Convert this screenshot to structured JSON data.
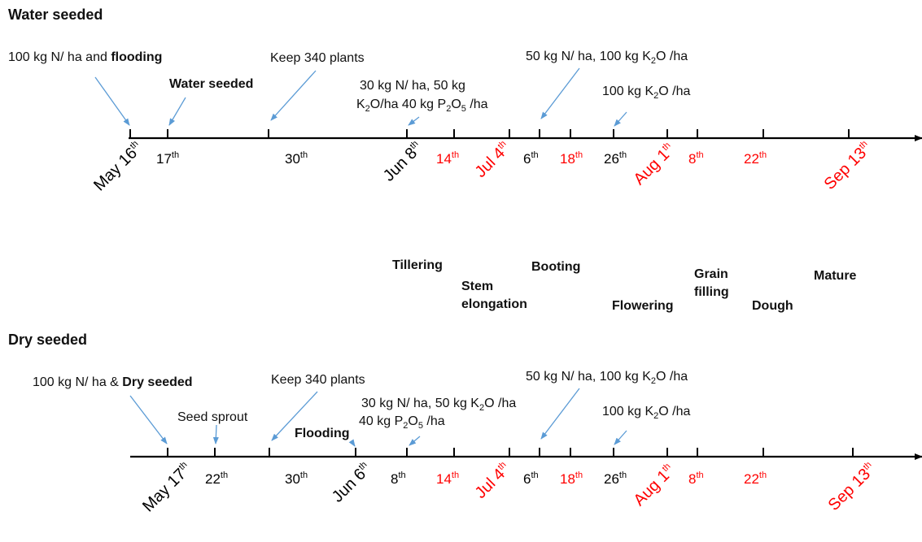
{
  "accent_red": "#ff0000",
  "arrow_color": "#5b9bd5",
  "axis_color": "#000000",
  "water": {
    "title": "Water seeded",
    "annotations": {
      "a1_pre": "100 kg N/ ha and ",
      "a1_bold": "flooding",
      "a2": "Water seeded",
      "a3": "Keep 340 plants",
      "a4_l1": "30 kg N/ ha, 50 kg",
      "a4_l2_k": "K",
      "a4_l2_k_sub": "2",
      "a4_l2_mid": "O/ha 40 kg P",
      "a4_l2_p_sub": "2",
      "a4_l2_o": "O",
      "a4_l2_o_sub": "5",
      "a4_l2_end": " /ha",
      "a5_pre": "50 kg N/ ha, 100 kg K",
      "a5_sub": "2",
      "a5_end": "O /ha",
      "a6_pre": "100 kg K",
      "a6_sub": "2",
      "a6_end": "O /ha"
    },
    "days": {
      "d17": "17",
      "d17s": "th",
      "d30": "30",
      "d30s": "th",
      "d14": "14",
      "d14s": "th",
      "d6": "6",
      "d6s": "th",
      "d18": "18",
      "d18s": "th",
      "d26": "26",
      "d26s": "th",
      "d8": "8",
      "d8s": "th",
      "d22": "22",
      "d22s": "th"
    },
    "months": {
      "may": "May 16",
      "mays": "th",
      "jun": "Jun 8",
      "juns": "th",
      "jul": "Jul 4",
      "juls": "th",
      "aug": "Aug 1",
      "augs": "th",
      "sep": "Sep 13",
      "seps": "th"
    }
  },
  "stages": {
    "tillering": "Tillering",
    "stem_l1": "Stem",
    "stem_l2": "elongation",
    "booting": "Booting",
    "flowering": "Flowering",
    "grain_l1": "Grain",
    "grain_l2": "filling",
    "dough": "Dough",
    "mature": "Mature"
  },
  "dry": {
    "title": "Dry seeded",
    "annotations": {
      "b1_pre": "100 kg N/ ha & ",
      "b1_bold": "Dry seeded",
      "b2": "Seed sprout",
      "b3": "Keep 340 plants",
      "b4": "Flooding",
      "b5_l1_pre": "30 kg N/ ha, 50 kg K",
      "b5_l1_sub": "2",
      "b5_l1_end": "O /ha",
      "b5_l2_pre": "40 kg P",
      "b5_l2_sub": "2",
      "b5_l2_mid": "O",
      "b5_l2_sub2": "5",
      "b5_l2_end": " /ha",
      "b6_pre": "50 kg N/ ha, 100 kg K",
      "b6_sub": "2",
      "b6_end": "O /ha",
      "b7_pre": "100 kg K",
      "b7_sub": "2",
      "b7_end": "O /ha"
    },
    "days": {
      "d22": "22",
      "d22s": "th",
      "d30": "30",
      "d30s": "th",
      "d8": "8",
      "d8s": "th",
      "d14": "14",
      "d14s": "th",
      "d6": "6",
      "d6s": "th",
      "d18": "18",
      "d18s": "th",
      "d26": "26",
      "d26s": "th",
      "d8b": "8",
      "d8bs": "th",
      "d22b": "22",
      "d22bs": "th"
    },
    "months": {
      "may": "May 17",
      "mays": "th",
      "jun": "Jun 6",
      "juns": "th",
      "jul": "Jul 4",
      "juls": "th",
      "aug": "Aug 1",
      "augs": "th",
      "sep": "Sep 13",
      "seps": "th"
    }
  }
}
